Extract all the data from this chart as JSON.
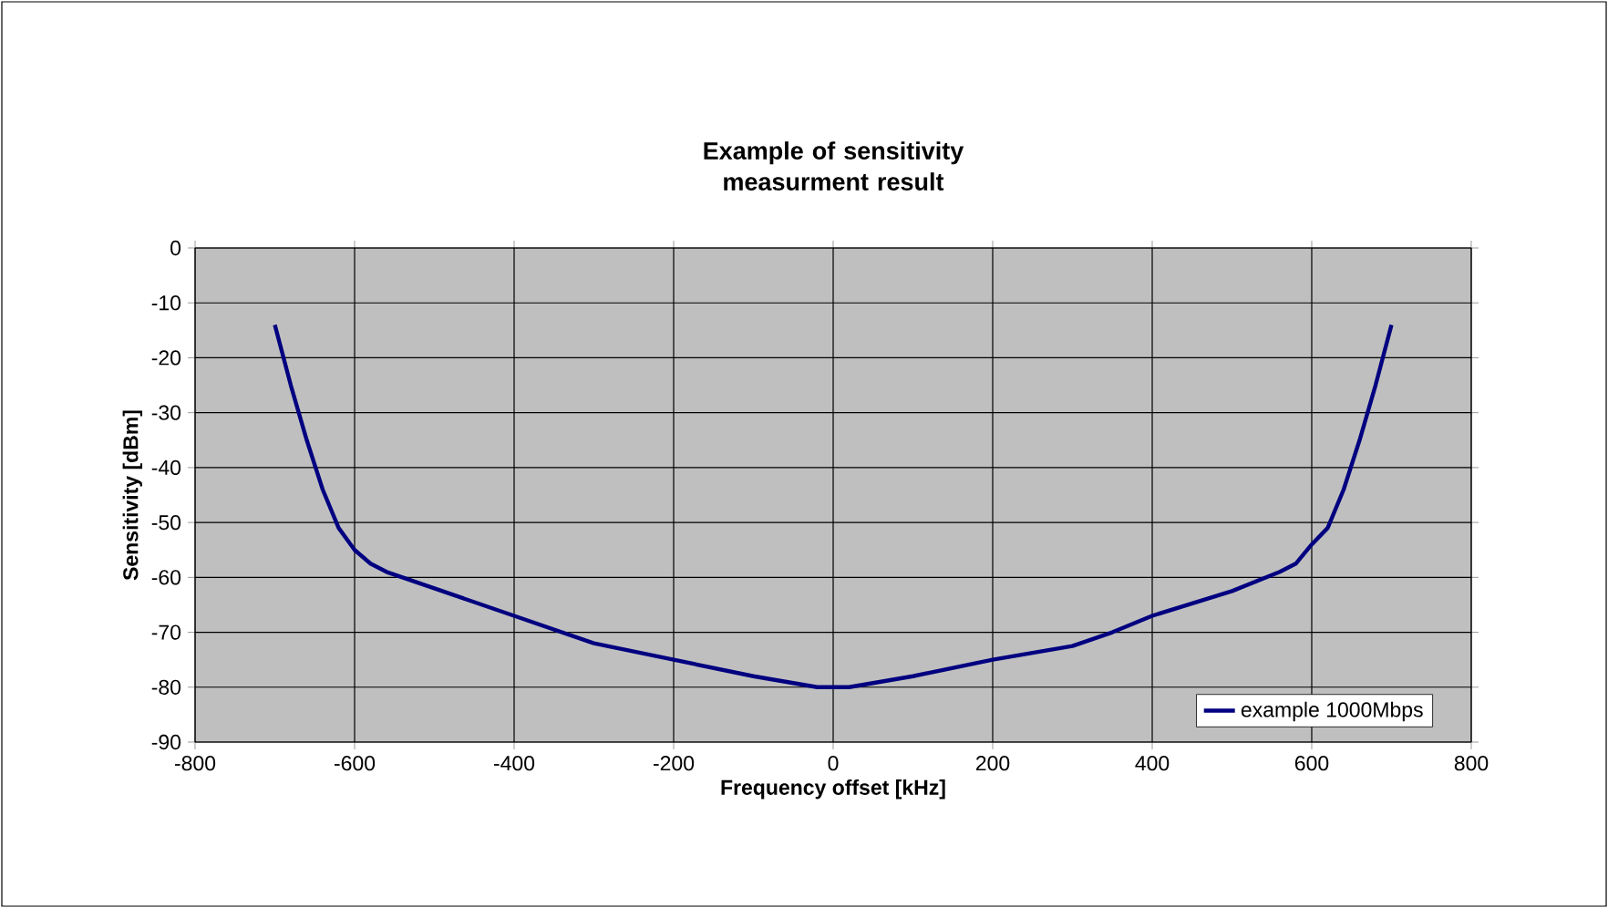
{
  "chart_data": {
    "type": "line",
    "title": "Example of sensitivity measurment result",
    "xlabel": "Frequency offset [kHz]",
    "ylabel": "Sensitivity [dBm]",
    "xlim": [
      -800,
      800
    ],
    "ylim": [
      -90,
      0
    ],
    "xticks": [
      -800,
      -600,
      -400,
      -200,
      0,
      200,
      400,
      600,
      800
    ],
    "yticks": [
      -90,
      -80,
      -70,
      -60,
      -50,
      -40,
      -30,
      -20,
      -10,
      0
    ],
    "grid": true,
    "legend": "bottom right",
    "line_style": "solid",
    "series": [
      {
        "name": "example 1000Mbps",
        "color": "#000080",
        "x": [
          -700,
          -680,
          -660,
          -640,
          -620,
          -600,
          -580,
          -560,
          -500,
          -400,
          -350,
          -300,
          -200,
          -100,
          -20,
          20,
          100,
          200,
          300,
          350,
          400,
          500,
          560,
          580,
          600,
          620,
          640,
          660,
          680,
          700
        ],
        "values": [
          -14,
          -25,
          -35,
          -44,
          -51,
          -55,
          -57.5,
          -59,
          -62,
          -67,
          -69.5,
          -72,
          -75,
          -78,
          -80,
          -80,
          -78,
          -75,
          -72.5,
          -70,
          -67,
          -62.5,
          -59,
          -57.5,
          -54,
          -51,
          -44,
          -35,
          -25,
          -14
        ]
      }
    ]
  }
}
